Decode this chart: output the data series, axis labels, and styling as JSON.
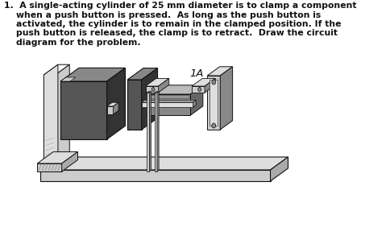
{
  "title_line1": "1.  A single-acting cylinder of 25 mm diameter is to clamp a component",
  "title_line2": "    when a push button is pressed.  As long as the push button is",
  "title_line3": "    activated, the cylinder is to remain in the clamped position. If the",
  "title_line4": "    push button is released, the clamp is to retract.  Draw the circuit",
  "title_line5": "    diagram for the problem.",
  "label_1A": "1A",
  "bg_color": "#ffffff",
  "text_color": "#111111",
  "c_dark": "#555555",
  "c_mid": "#888888",
  "c_light": "#bbbbbb",
  "c_vlight": "#dedede",
  "c_lighter": "#cccccc",
  "c_white": "#f5f5f5",
  "c_black": "#111111",
  "font_size_text": 7.8,
  "font_size_label": 9.5
}
